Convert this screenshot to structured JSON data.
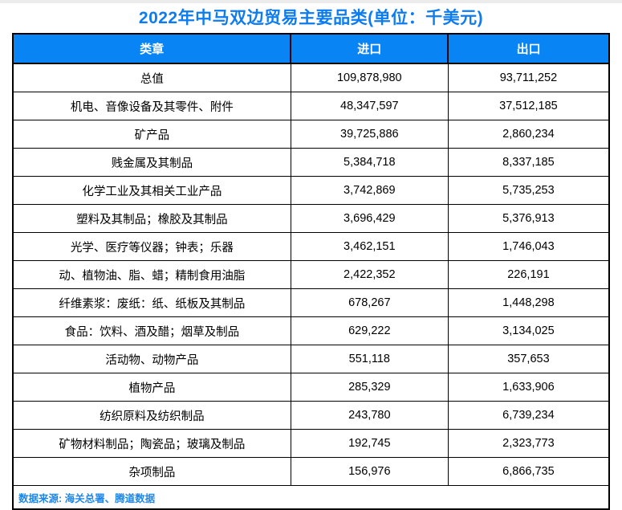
{
  "title": "2022年中马双边贸易主要品类(单位：千美元)",
  "colors": {
    "header_background": "#0984f5",
    "title_text": "#0c7cf0",
    "footer_text": "#1e86e8",
    "table_border": "#000000",
    "header_text": "#ffffff",
    "body_text": "#000000"
  },
  "table": {
    "headers": [
      "类章",
      "进口",
      "出口"
    ],
    "rows": [
      [
        "总值",
        "109,878,980",
        "93,711,252"
      ],
      [
        "机电、音像设备及其零件、附件",
        "48,347,597",
        "37,512,185"
      ],
      [
        "矿产品",
        "39,725,886",
        "2,860,234"
      ],
      [
        "贱金属及其制品",
        "5,384,718",
        "8,337,185"
      ],
      [
        "化学工业及其相关工业产品",
        "3,742,869",
        "5,735,253"
      ],
      [
        "塑料及其制品；橡胶及其制品",
        "3,696,429",
        "5,376,913"
      ],
      [
        "光学、医疗等仪器；钟表；乐器",
        "3,462,151",
        "1,746,043"
      ],
      [
        "动、植物油、脂、蜡；精制食用油脂",
        "2,422,352",
        "226,191"
      ],
      [
        "纤维素浆：废纸：纸、纸板及其制品",
        "678,267",
        "1,448,298"
      ],
      [
        "食品：饮料、酒及醋；烟草及制品",
        "629,222",
        "3,134,025"
      ],
      [
        "活动物、动物产品",
        "551,118",
        "357,653"
      ],
      [
        "植物产品",
        "285,329",
        "1,633,906"
      ],
      [
        "纺织原料及纺织制品",
        "243,780",
        "6,739,234"
      ],
      [
        "矿物材料制品；陶瓷品；玻璃及制品",
        "192,745",
        "2,323,773"
      ],
      [
        "杂项制品",
        "156,976",
        "6,866,735"
      ]
    ]
  },
  "footer": "数据来源: 海关总署、腾道数据",
  "chart_data": {
    "type": "table",
    "title": "2022年中马双边贸易主要品类(单位：千美元)",
    "unit": "千美元",
    "columns": [
      "类章",
      "进口",
      "出口"
    ],
    "categories": [
      "总值",
      "机电、音像设备及其零件、附件",
      "矿产品",
      "贱金属及其制品",
      "化学工业及其相关工业产品",
      "塑料及其制品；橡胶及其制品",
      "光学、医疗等仪器；钟表；乐器",
      "动、植物油、脂、蜡；精制食用油脂",
      "纤维素浆：废纸：纸、纸板及其制品",
      "食品：饮料、酒及醋；烟草及制品",
      "活动物、动物产品",
      "植物产品",
      "纺织原料及纺织制品",
      "矿物材料制品；陶瓷品；玻璃及制品",
      "杂项制品"
    ],
    "series": [
      {
        "name": "进口",
        "values": [
          109878980,
          48347597,
          39725886,
          5384718,
          3742869,
          3696429,
          3462151,
          2422352,
          678267,
          629222,
          551118,
          285329,
          243780,
          192745,
          156976
        ]
      },
      {
        "name": "出口",
        "values": [
          93711252,
          37512185,
          2860234,
          8337185,
          5735253,
          5376913,
          1746043,
          226191,
          1448298,
          3134025,
          357653,
          1633906,
          6739234,
          2323773,
          6866735
        ]
      }
    ],
    "source": "数据来源: 海关总署、腾道数据"
  }
}
